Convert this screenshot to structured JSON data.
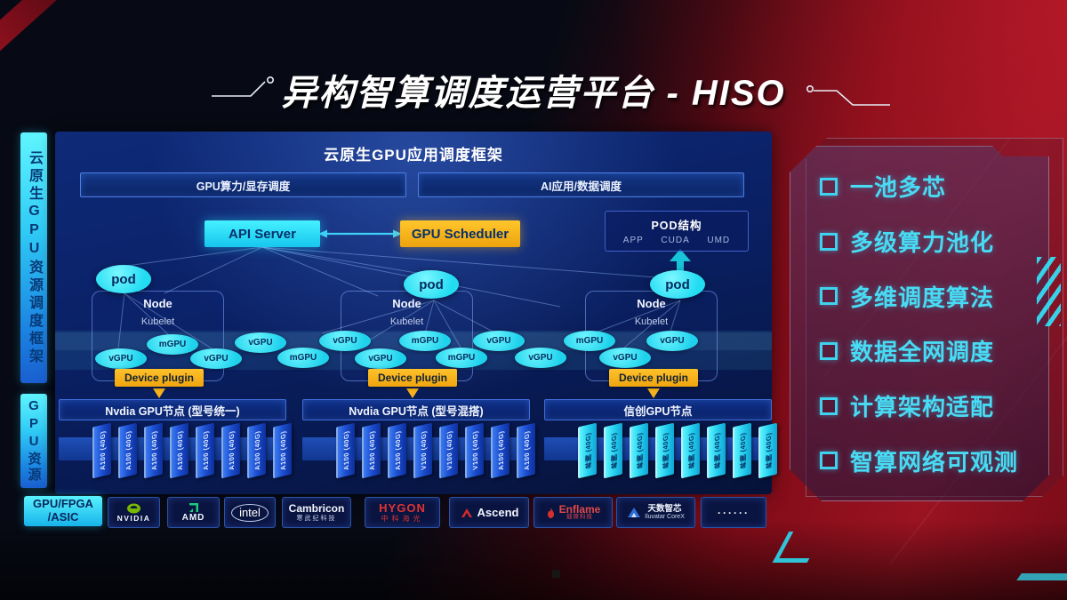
{
  "title": "异构智算调度运营平台 - HISO",
  "sidebar": {
    "frame_label": "云原生GPU资源调度框架",
    "resource_label": "GPU资源"
  },
  "scheduler_panel": {
    "header": "云原生GPU应用调度框架",
    "bars": [
      {
        "label": "GPU算力/显存调度"
      },
      {
        "label": "AI应用/数据调度"
      }
    ],
    "api_server": "API Server",
    "gpu_scheduler": "GPU Scheduler",
    "pod_structure": {
      "title": "POD结构",
      "layers": [
        "APP",
        "CUDA",
        "UMD"
      ]
    },
    "pod_label": "pod",
    "nodes": [
      {
        "title": "Node",
        "agent": "Kubelet",
        "plugin": "Device plugin"
      },
      {
        "title": "Node",
        "agent": "Kubelet",
        "plugin": "Device plugin"
      },
      {
        "title": "Node",
        "agent": "Kubelet",
        "plugin": "Device plugin"
      }
    ],
    "gpu_ellipses": [
      "vGPU",
      "mGPU",
      "vGPU",
      "vGPU",
      "mGPU",
      "vGPU",
      "vGPU",
      "mGPU",
      "mGPU",
      "vGPU",
      "vGPU",
      "mGPU",
      "vGPU",
      "vGPU"
    ],
    "gpu_groups": [
      {
        "label": "Nvdia GPU节点 (型号统一)",
        "style": "blue",
        "cards": [
          "A100 (40G)",
          "A100 (40G)",
          "A100 (40G)",
          "A100 (40G)",
          "A100 (40G)",
          "A100 (40G)",
          "A100 (40G)",
          "A100 (40G)"
        ]
      },
      {
        "label": "Nvdia GPU节点 (型号混搭)",
        "style": "blue",
        "cards": [
          "A100 (40G)",
          "A100 (40G)",
          "A100 (40G)",
          "V100 (40G)",
          "V100 (40G)",
          "V100 (40G)",
          "A100 (40G)",
          "A100 (40G)"
        ]
      },
      {
        "label": "信创GPU节点",
        "style": "cyan",
        "cards": [
          "昇腾 (40G)",
          "昇腾 (40G)",
          "昇腾 (40G)",
          "昇腾 (40G)",
          "昇腾 (40G)",
          "昇腾 (40G)",
          "昇腾 (40G)",
          "昇腾 (40G)"
        ]
      }
    ]
  },
  "hardware_bar": {
    "label_line1": "GPU/FPGA",
    "label_line2": "/ASIC",
    "vendors": [
      {
        "id": "nvidia",
        "name": "NVIDIA"
      },
      {
        "id": "amd",
        "name": "AMD"
      },
      {
        "id": "intel",
        "name": "intel"
      },
      {
        "id": "cambricon",
        "name": "Cambricon",
        "sub": "寒武纪科技"
      },
      {
        "id": "hygon",
        "name": "HYGON",
        "sub": "中科海光"
      },
      {
        "id": "ascend",
        "name": "Ascend"
      },
      {
        "id": "enflame",
        "name": "Enflame",
        "sub": "燧原科技"
      },
      {
        "id": "iluvatar",
        "name": "天数智芯",
        "sub": "Iluvatar CoreX"
      },
      {
        "id": "more",
        "name": "······"
      }
    ]
  },
  "features": [
    "一池多芯",
    "多级算力池化",
    "多维调度算法",
    "数据全网调度",
    "计算架构适配",
    "智算网络可观测"
  ],
  "colors": {
    "accent_cyan": "#35e8f8",
    "accent_yellow": "#f7b21b",
    "accent_red": "#8c0f1a",
    "feature_text": "#48dbf4"
  }
}
